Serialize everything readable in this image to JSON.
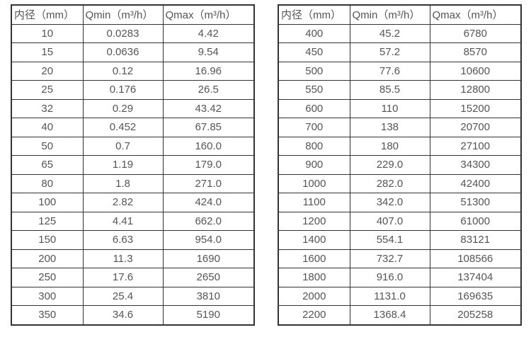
{
  "page": {
    "background": "#ffffff",
    "border_color": "#333333",
    "text_color": "#555555"
  },
  "chart_data": [
    {
      "type": "table",
      "title": "",
      "columns": [
        "内径（mm）",
        "Qmin（m³/h）",
        "Qmax（m³/h）"
      ],
      "rows": [
        [
          "10",
          "0.0283",
          "4.42"
        ],
        [
          "15",
          "0.0636",
          "9.54"
        ],
        [
          "20",
          "0.12",
          "16.96"
        ],
        [
          "25",
          "0.176",
          "26.5"
        ],
        [
          "32",
          "0.29",
          "43.42"
        ],
        [
          "40",
          "0.452",
          "67.85"
        ],
        [
          "50",
          "0.7",
          "160.0"
        ],
        [
          "65",
          "1.19",
          "179.0"
        ],
        [
          "80",
          "1.8",
          "271.0"
        ],
        [
          "100",
          "2.82",
          "424.0"
        ],
        [
          "125",
          "4.41",
          "662.0"
        ],
        [
          "150",
          "6.63",
          "954.0"
        ],
        [
          "200",
          "11.3",
          "1690"
        ],
        [
          "250",
          "17.6",
          "2650"
        ],
        [
          "300",
          "25.4",
          "3810"
        ],
        [
          "350",
          "34.6",
          "5190"
        ]
      ]
    },
    {
      "type": "table",
      "title": "",
      "columns": [
        "内径（mm）",
        "Qmin（m³/h）",
        "Qmax（m³/h）"
      ],
      "rows": [
        [
          "400",
          "45.2",
          "6780"
        ],
        [
          "450",
          "57.2",
          "8570"
        ],
        [
          "500",
          "77.6",
          "10600"
        ],
        [
          "550",
          "85.5",
          "12800"
        ],
        [
          "600",
          "110",
          "15200"
        ],
        [
          "700",
          "138",
          "20700"
        ],
        [
          "800",
          "180",
          "27100"
        ],
        [
          "900",
          "229.0",
          "34300"
        ],
        [
          "1000",
          "282.0",
          "42400"
        ],
        [
          "1100",
          "342.0",
          "51300"
        ],
        [
          "1200",
          "407.0",
          "61000"
        ],
        [
          "1400",
          "554.1",
          "83121"
        ],
        [
          "1600",
          "732.7",
          "108566"
        ],
        [
          "1800",
          "916.0",
          "137404"
        ],
        [
          "2000",
          "1131.0",
          "169635"
        ],
        [
          "2200",
          "1368.4",
          "205258"
        ]
      ]
    }
  ]
}
